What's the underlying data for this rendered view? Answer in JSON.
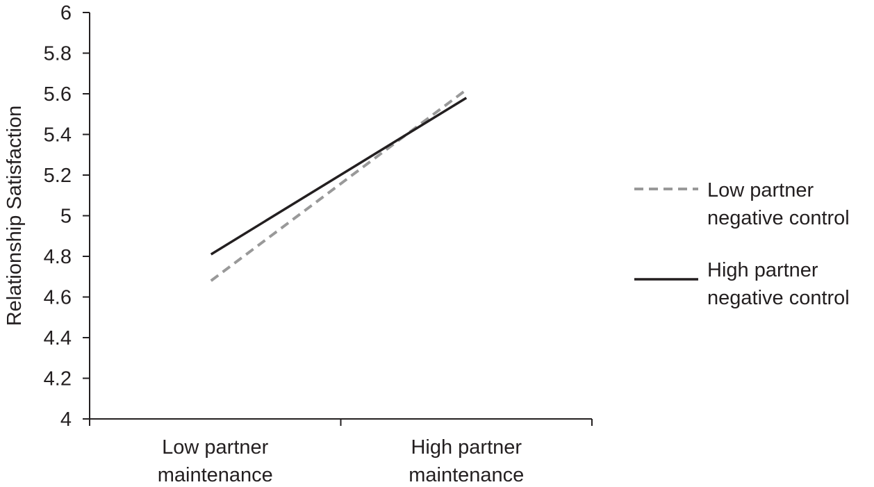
{
  "chart_data": {
    "type": "line",
    "categories": [
      "Low partner maintenance",
      "High partner maintenance"
    ],
    "category_lines": [
      [
        "Low partner",
        "maintenance"
      ],
      [
        "High partner",
        "maintenance"
      ]
    ],
    "ylabel": "Relationship Satisfaction",
    "ylim": [
      4,
      6
    ],
    "yticks": [
      "4",
      "4.2",
      "4.4",
      "4.6",
      "4.8",
      "5",
      "5.2",
      "5.4",
      "5.6",
      "5.8",
      "6"
    ],
    "grid": false,
    "legend_position": "right",
    "series": [
      {
        "name": "Low partner negative control",
        "name_lines": [
          "Low partner",
          "negative control"
        ],
        "values": [
          4.68,
          5.62
        ],
        "color": "#999999",
        "style": "dashed"
      },
      {
        "name": "High partner negative control",
        "name_lines": [
          "High partner",
          "negative control"
        ],
        "values": [
          4.81,
          5.58
        ],
        "color": "#231f20",
        "style": "solid"
      }
    ]
  }
}
